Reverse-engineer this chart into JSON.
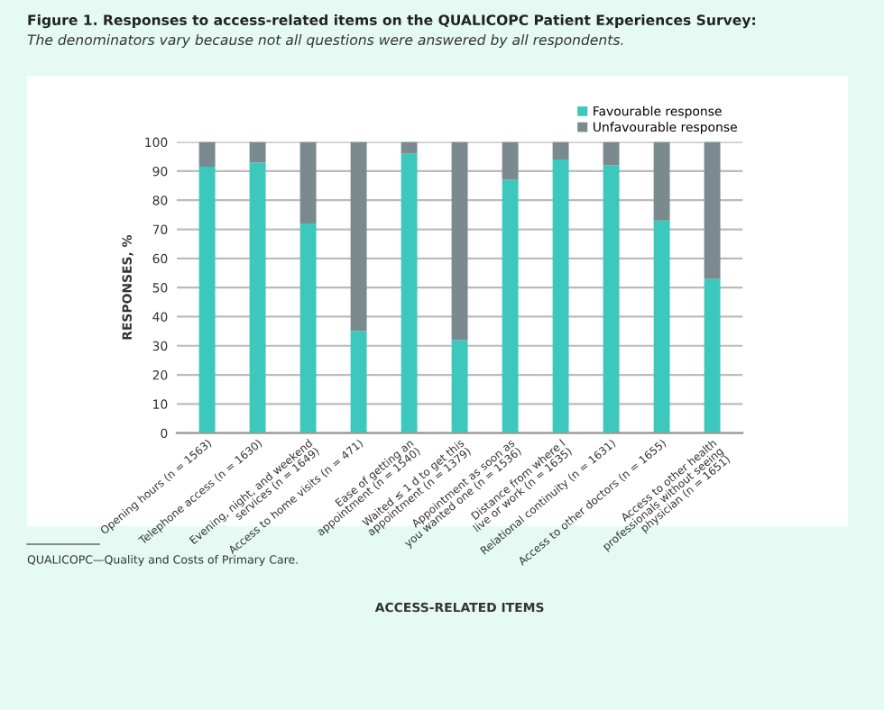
{
  "chart_data": {
    "type": "bar",
    "stacked": true,
    "title": "Figure 1. Responses to access-related items on the QUALICOPC Patient Experiences Survey:",
    "subtitle": "The denominators vary because not all questions were answered by all respondents.",
    "xlabel": "ACCESS-RELATED ITEMS",
    "ylabel": "RESPONSES, %",
    "categories": [
      "Opening hours (n = 1563)",
      "Telephone access (n = 1630)",
      "Evening, night, and weekend\nservices (n = 1649)",
      "Access to home visits (n = 471)",
      "Ease of getting an\nappointment (n = 1540)",
      "Waited ≤ 1 d to get this\nappointment (n = 1379)",
      "Appointment as soon as\nyou wanted one (n = 1536)",
      "Distance from where I\nlive or work (n = 1635)",
      "Relational continuity (n = 1631)",
      "Access to other doctors (n = 1655)",
      "Access to other health\nprofessionals without seeing\nphysician (n = 1651)"
    ],
    "series": [
      {
        "name": "Favourable response",
        "color": "#3cc8bc",
        "values": [
          91.5,
          93,
          72,
          35,
          96,
          32,
          87,
          94,
          92,
          73,
          53
        ]
      },
      {
        "name": "Unfavourable response",
        "color": "#7a8a8e",
        "values": [
          8.5,
          7,
          28,
          65,
          4,
          68,
          13,
          6,
          8,
          27,
          47
        ]
      }
    ],
    "ylim": [
      0,
      100
    ],
    "yticks": [
      0,
      10,
      20,
      30,
      40,
      50,
      60,
      70,
      80,
      90,
      100
    ],
    "grid": "y",
    "legend": "top right",
    "annotations": [
      "QUALICOPC—Quality and Costs of Primary Care."
    ]
  }
}
